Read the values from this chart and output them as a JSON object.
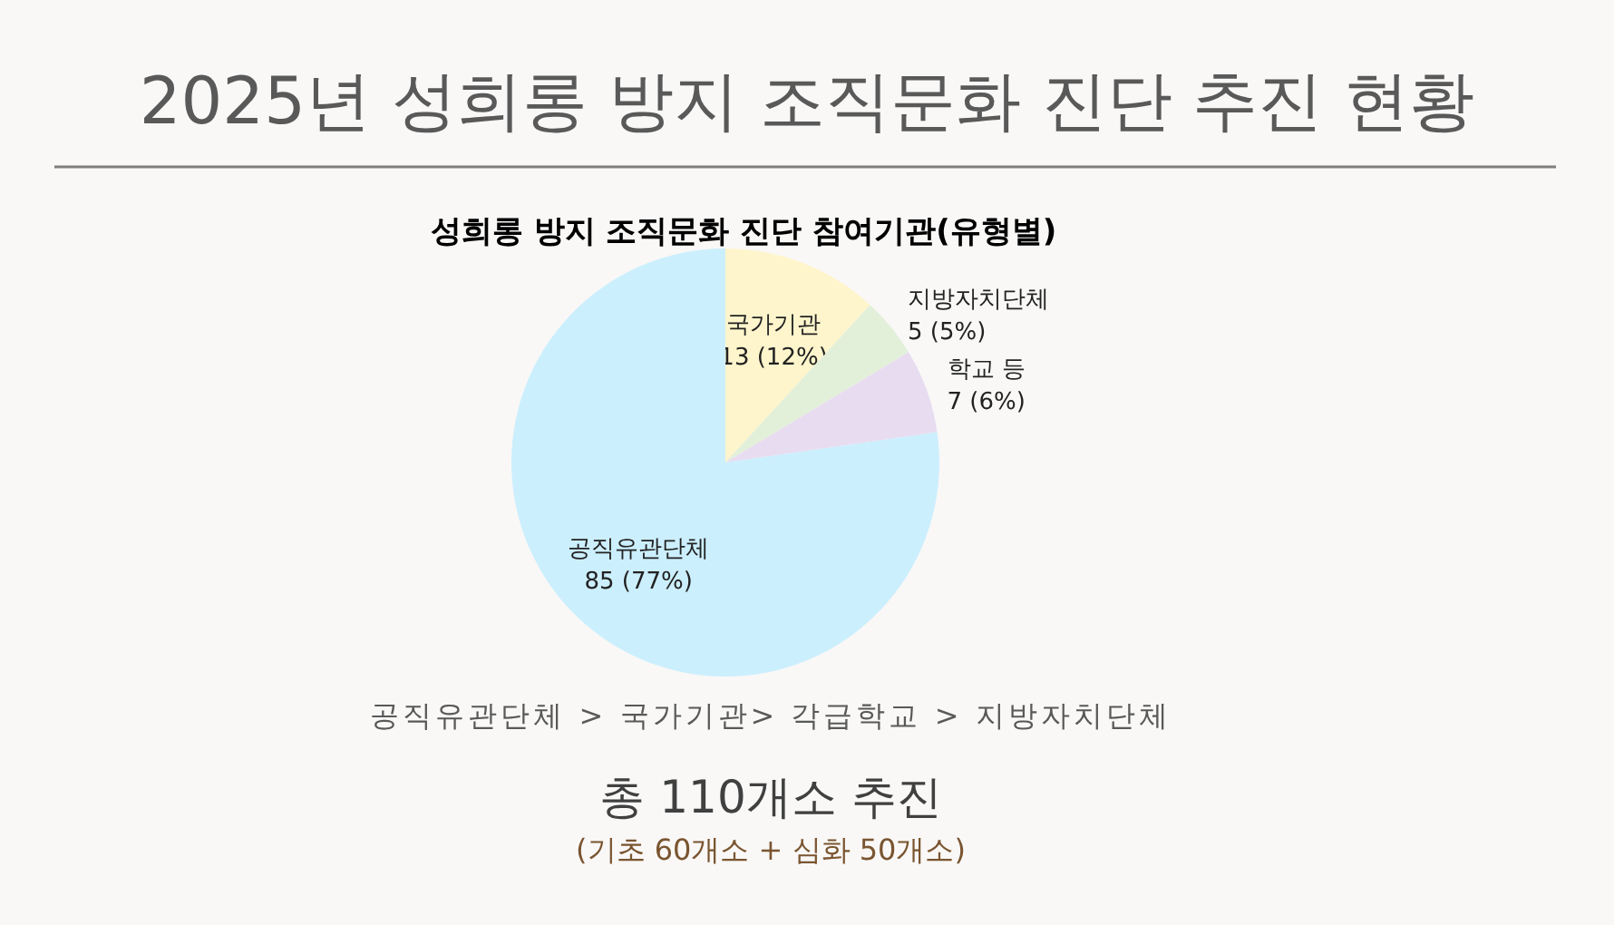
{
  "chart_data": {
    "type": "pie",
    "title": "2025년 성희롱 방지 조직문화 진단 추진 현황",
    "subtitle": "성희롱 방지 조직문화 진단 참여기관(유형별)",
    "categories": [
      "국가기관",
      "지방자치단체",
      "학교 등",
      "공직유관단체"
    ],
    "values": [
      13,
      5,
      7,
      85
    ],
    "value_labels": [
      "13 (12%)",
      "5 (5%)",
      "7 (6%)",
      "85 (77%)"
    ],
    "colors": [
      "#fff5cc",
      "#e2f0d9",
      "#e8dcf1",
      "#cceffd"
    ],
    "annotations": [
      "공직유관단체 > 국가기관> 각급학교 > 지방자치단체",
      "총 110개소 추진",
      "(기초 60개소 + 심화 50개소)"
    ]
  }
}
